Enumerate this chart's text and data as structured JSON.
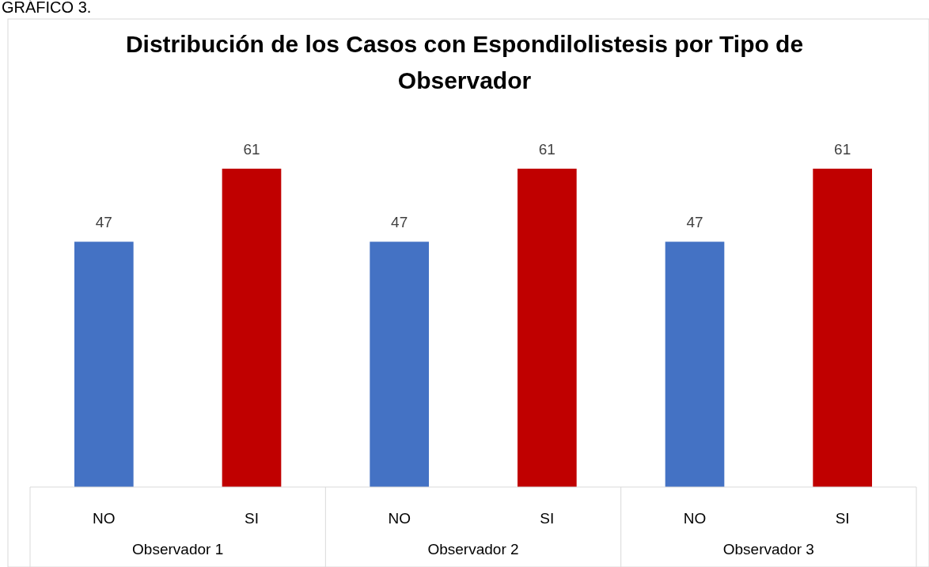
{
  "chart_data": {
    "type": "bar",
    "title": "Distribución de los Casos con Espondilolistesis por Tipo de Observador",
    "categories": [
      "NO",
      "SI",
      "NO",
      "SI",
      "NO",
      "SI"
    ],
    "values": [
      47,
      61,
      47,
      61,
      47,
      61
    ],
    "colors": [
      "#4472c4",
      "#c00000",
      "#4472c4",
      "#c00000",
      "#4472c4",
      "#c00000"
    ],
    "data_labels": true,
    "annotations": [
      "GRÁFICO 3.",
      "Observador 1",
      "Observador 2",
      "Observador 3"
    ]
  }
}
